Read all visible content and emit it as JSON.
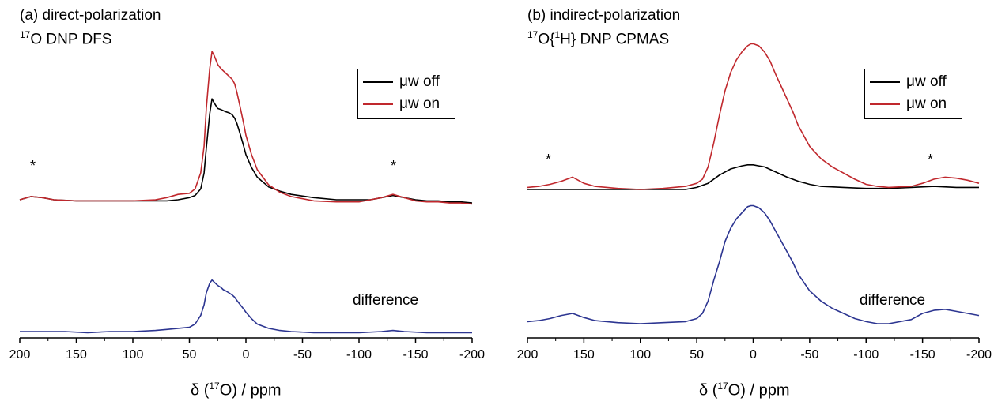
{
  "panels": [
    {
      "title_line1": "(a) direct-polarization",
      "title_line2_sup": "17",
      "title_line2_rest": "O DNP DFS",
      "legend": [
        "μw off",
        "μw on"
      ],
      "difference_label": "difference",
      "star": "*",
      "xlabel_prefix": "δ (",
      "xlabel_sup": "17",
      "xlabel_suffix": "O) / ppm"
    },
    {
      "title_line1": "(b) indirect-polarization",
      "title_line2_sup": "17",
      "title_line2_mid": "O{",
      "title_line2_sup2": "1",
      "title_line2_rest": "H} DNP CPMAS",
      "legend": [
        "μw off",
        "μw on"
      ],
      "difference_label": "difference",
      "star": "*",
      "xlabel_prefix": "δ (",
      "xlabel_sup": "17",
      "xlabel_suffix": "O) / ppm"
    }
  ],
  "colors": {
    "off": "#000000",
    "on": "#c0282d",
    "difference": "#2c3591"
  },
  "chart_data": [
    {
      "type": "line",
      "title": "(a) direct-polarization 17O DNP DFS",
      "xlabel": "δ (17O) / ppm",
      "xlim": [
        200,
        -200
      ],
      "x_ticks": [
        200,
        150,
        100,
        50,
        0,
        -50,
        -100,
        -150,
        -200
      ],
      "x_reversed": true,
      "series": [
        {
          "name": "μw off",
          "color": "#000000",
          "x": [
            200,
            190,
            180,
            170,
            150,
            120,
            100,
            80,
            70,
            60,
            50,
            45,
            40,
            37,
            35,
            32,
            30,
            28,
            25,
            22,
            20,
            18,
            15,
            12,
            10,
            8,
            5,
            2,
            0,
            -5,
            -10,
            -20,
            -30,
            -40,
            -60,
            -80,
            -100,
            -110,
            -120,
            -130,
            -140,
            -150,
            -160,
            -170,
            -180,
            -190,
            -200
          ],
          "y": [
            0.0,
            0.03,
            0.02,
            0.0,
            -0.01,
            -0.01,
            -0.01,
            -0.01,
            -0.01,
            0.0,
            0.02,
            0.04,
            0.1,
            0.25,
            0.48,
            0.8,
            0.94,
            0.9,
            0.85,
            0.84,
            0.83,
            0.82,
            0.81,
            0.79,
            0.76,
            0.71,
            0.61,
            0.5,
            0.42,
            0.3,
            0.21,
            0.12,
            0.08,
            0.05,
            0.02,
            0.0,
            0.0,
            0.0,
            0.02,
            0.04,
            0.02,
            0.0,
            -0.01,
            -0.01,
            -0.02,
            -0.02,
            -0.03
          ]
        },
        {
          "name": "μw on",
          "color": "#c0282d",
          "x": [
            200,
            190,
            180,
            170,
            150,
            120,
            100,
            80,
            70,
            60,
            50,
            45,
            40,
            37,
            35,
            32,
            30,
            28,
            25,
            22,
            20,
            18,
            15,
            12,
            10,
            8,
            5,
            2,
            0,
            -5,
            -10,
            -20,
            -30,
            -40,
            -60,
            -80,
            -100,
            -110,
            -120,
            -130,
            -140,
            -150,
            -160,
            -170,
            -180,
            -190,
            -200
          ],
          "y": [
            0.0,
            0.03,
            0.02,
            0.0,
            -0.01,
            -0.01,
            -0.01,
            0.0,
            0.02,
            0.05,
            0.06,
            0.1,
            0.25,
            0.5,
            0.85,
            1.22,
            1.38,
            1.34,
            1.26,
            1.22,
            1.2,
            1.18,
            1.15,
            1.12,
            1.08,
            1.0,
            0.86,
            0.71,
            0.6,
            0.42,
            0.28,
            0.14,
            0.07,
            0.03,
            -0.01,
            -0.02,
            -0.02,
            0.0,
            0.02,
            0.05,
            0.02,
            -0.01,
            -0.02,
            -0.02,
            -0.03,
            -0.03,
            -0.04
          ]
        },
        {
          "name": "difference",
          "color": "#2c3591",
          "x": [
            200,
            180,
            160,
            140,
            120,
            100,
            80,
            70,
            60,
            50,
            45,
            40,
            37,
            35,
            32,
            30,
            28,
            25,
            22,
            20,
            18,
            15,
            12,
            10,
            8,
            5,
            2,
            0,
            -5,
            -10,
            -20,
            -30,
            -40,
            -60,
            -80,
            -100,
            -120,
            -130,
            -140,
            -160,
            -180,
            -200
          ],
          "y": [
            0.0,
            0.0,
            0.0,
            -0.01,
            0.0,
            0.0,
            0.01,
            0.02,
            0.03,
            0.04,
            0.07,
            0.15,
            0.25,
            0.36,
            0.45,
            0.48,
            0.46,
            0.43,
            0.41,
            0.39,
            0.38,
            0.36,
            0.34,
            0.32,
            0.29,
            0.25,
            0.21,
            0.18,
            0.12,
            0.07,
            0.03,
            0.01,
            0.0,
            -0.01,
            -0.01,
            -0.01,
            0.0,
            0.01,
            0.0,
            -0.01,
            -0.01,
            -0.01
          ]
        }
      ]
    },
    {
      "type": "line",
      "title": "(b) indirect-polarization 17O{1H} DNP CPMAS",
      "xlabel": "δ (17O) / ppm",
      "xlim": [
        200,
        -200
      ],
      "x_ticks": [
        200,
        150,
        100,
        50,
        0,
        -50,
        -100,
        -150,
        -200
      ],
      "x_reversed": true,
      "series": [
        {
          "name": "μw off",
          "color": "#000000",
          "x": [
            200,
            180,
            160,
            140,
            120,
            100,
            80,
            60,
            50,
            40,
            30,
            20,
            10,
            5,
            0,
            -5,
            -10,
            -20,
            -30,
            -40,
            -50,
            -60,
            -80,
            -100,
            -120,
            -140,
            -160,
            -180,
            -200
          ],
          "y": [
            0.0,
            0.0,
            0.0,
            0.0,
            0.0,
            0.0,
            0.0,
            0.0,
            0.02,
            0.06,
            0.14,
            0.2,
            0.23,
            0.24,
            0.24,
            0.23,
            0.22,
            0.17,
            0.12,
            0.08,
            0.05,
            0.03,
            0.02,
            0.01,
            0.01,
            0.02,
            0.03,
            0.02,
            0.02
          ]
        },
        {
          "name": "μw on",
          "color": "#c0282d",
          "x": [
            200,
            190,
            180,
            170,
            160,
            150,
            140,
            120,
            100,
            80,
            60,
            50,
            45,
            40,
            35,
            30,
            25,
            20,
            15,
            10,
            5,
            2,
            0,
            -5,
            -10,
            -15,
            -20,
            -25,
            -30,
            -35,
            -40,
            -50,
            -60,
            -70,
            -80,
            -90,
            -100,
            -110,
            -120,
            -140,
            -150,
            -160,
            -170,
            -180,
            -190,
            -200
          ],
          "y": [
            0.02,
            0.03,
            0.05,
            0.08,
            0.12,
            0.06,
            0.03,
            0.01,
            0.0,
            0.01,
            0.03,
            0.06,
            0.1,
            0.22,
            0.45,
            0.72,
            0.96,
            1.14,
            1.26,
            1.34,
            1.4,
            1.42,
            1.42,
            1.4,
            1.34,
            1.25,
            1.12,
            1.0,
            0.88,
            0.76,
            0.62,
            0.42,
            0.3,
            0.22,
            0.16,
            0.1,
            0.05,
            0.03,
            0.02,
            0.03,
            0.06,
            0.1,
            0.12,
            0.11,
            0.09,
            0.06
          ]
        },
        {
          "name": "difference",
          "color": "#2c3591",
          "x": [
            200,
            190,
            180,
            170,
            160,
            150,
            140,
            120,
            100,
            80,
            60,
            50,
            45,
            40,
            35,
            30,
            25,
            20,
            15,
            10,
            5,
            2,
            0,
            -5,
            -10,
            -15,
            -20,
            -25,
            -30,
            -35,
            -40,
            -50,
            -60,
            -70,
            -80,
            -90,
            -100,
            -110,
            -120,
            -140,
            -150,
            -160,
            -170,
            -180,
            -190,
            -200
          ],
          "y": [
            0.02,
            0.03,
            0.05,
            0.08,
            0.1,
            0.06,
            0.03,
            0.01,
            0.0,
            0.01,
            0.02,
            0.05,
            0.1,
            0.22,
            0.42,
            0.6,
            0.8,
            0.93,
            1.02,
            1.08,
            1.14,
            1.15,
            1.15,
            1.13,
            1.08,
            1.0,
            0.9,
            0.8,
            0.7,
            0.6,
            0.48,
            0.32,
            0.22,
            0.15,
            0.1,
            0.05,
            0.02,
            0.0,
            0.0,
            0.04,
            0.1,
            0.13,
            0.14,
            0.12,
            0.1,
            0.08
          ]
        }
      ]
    }
  ]
}
